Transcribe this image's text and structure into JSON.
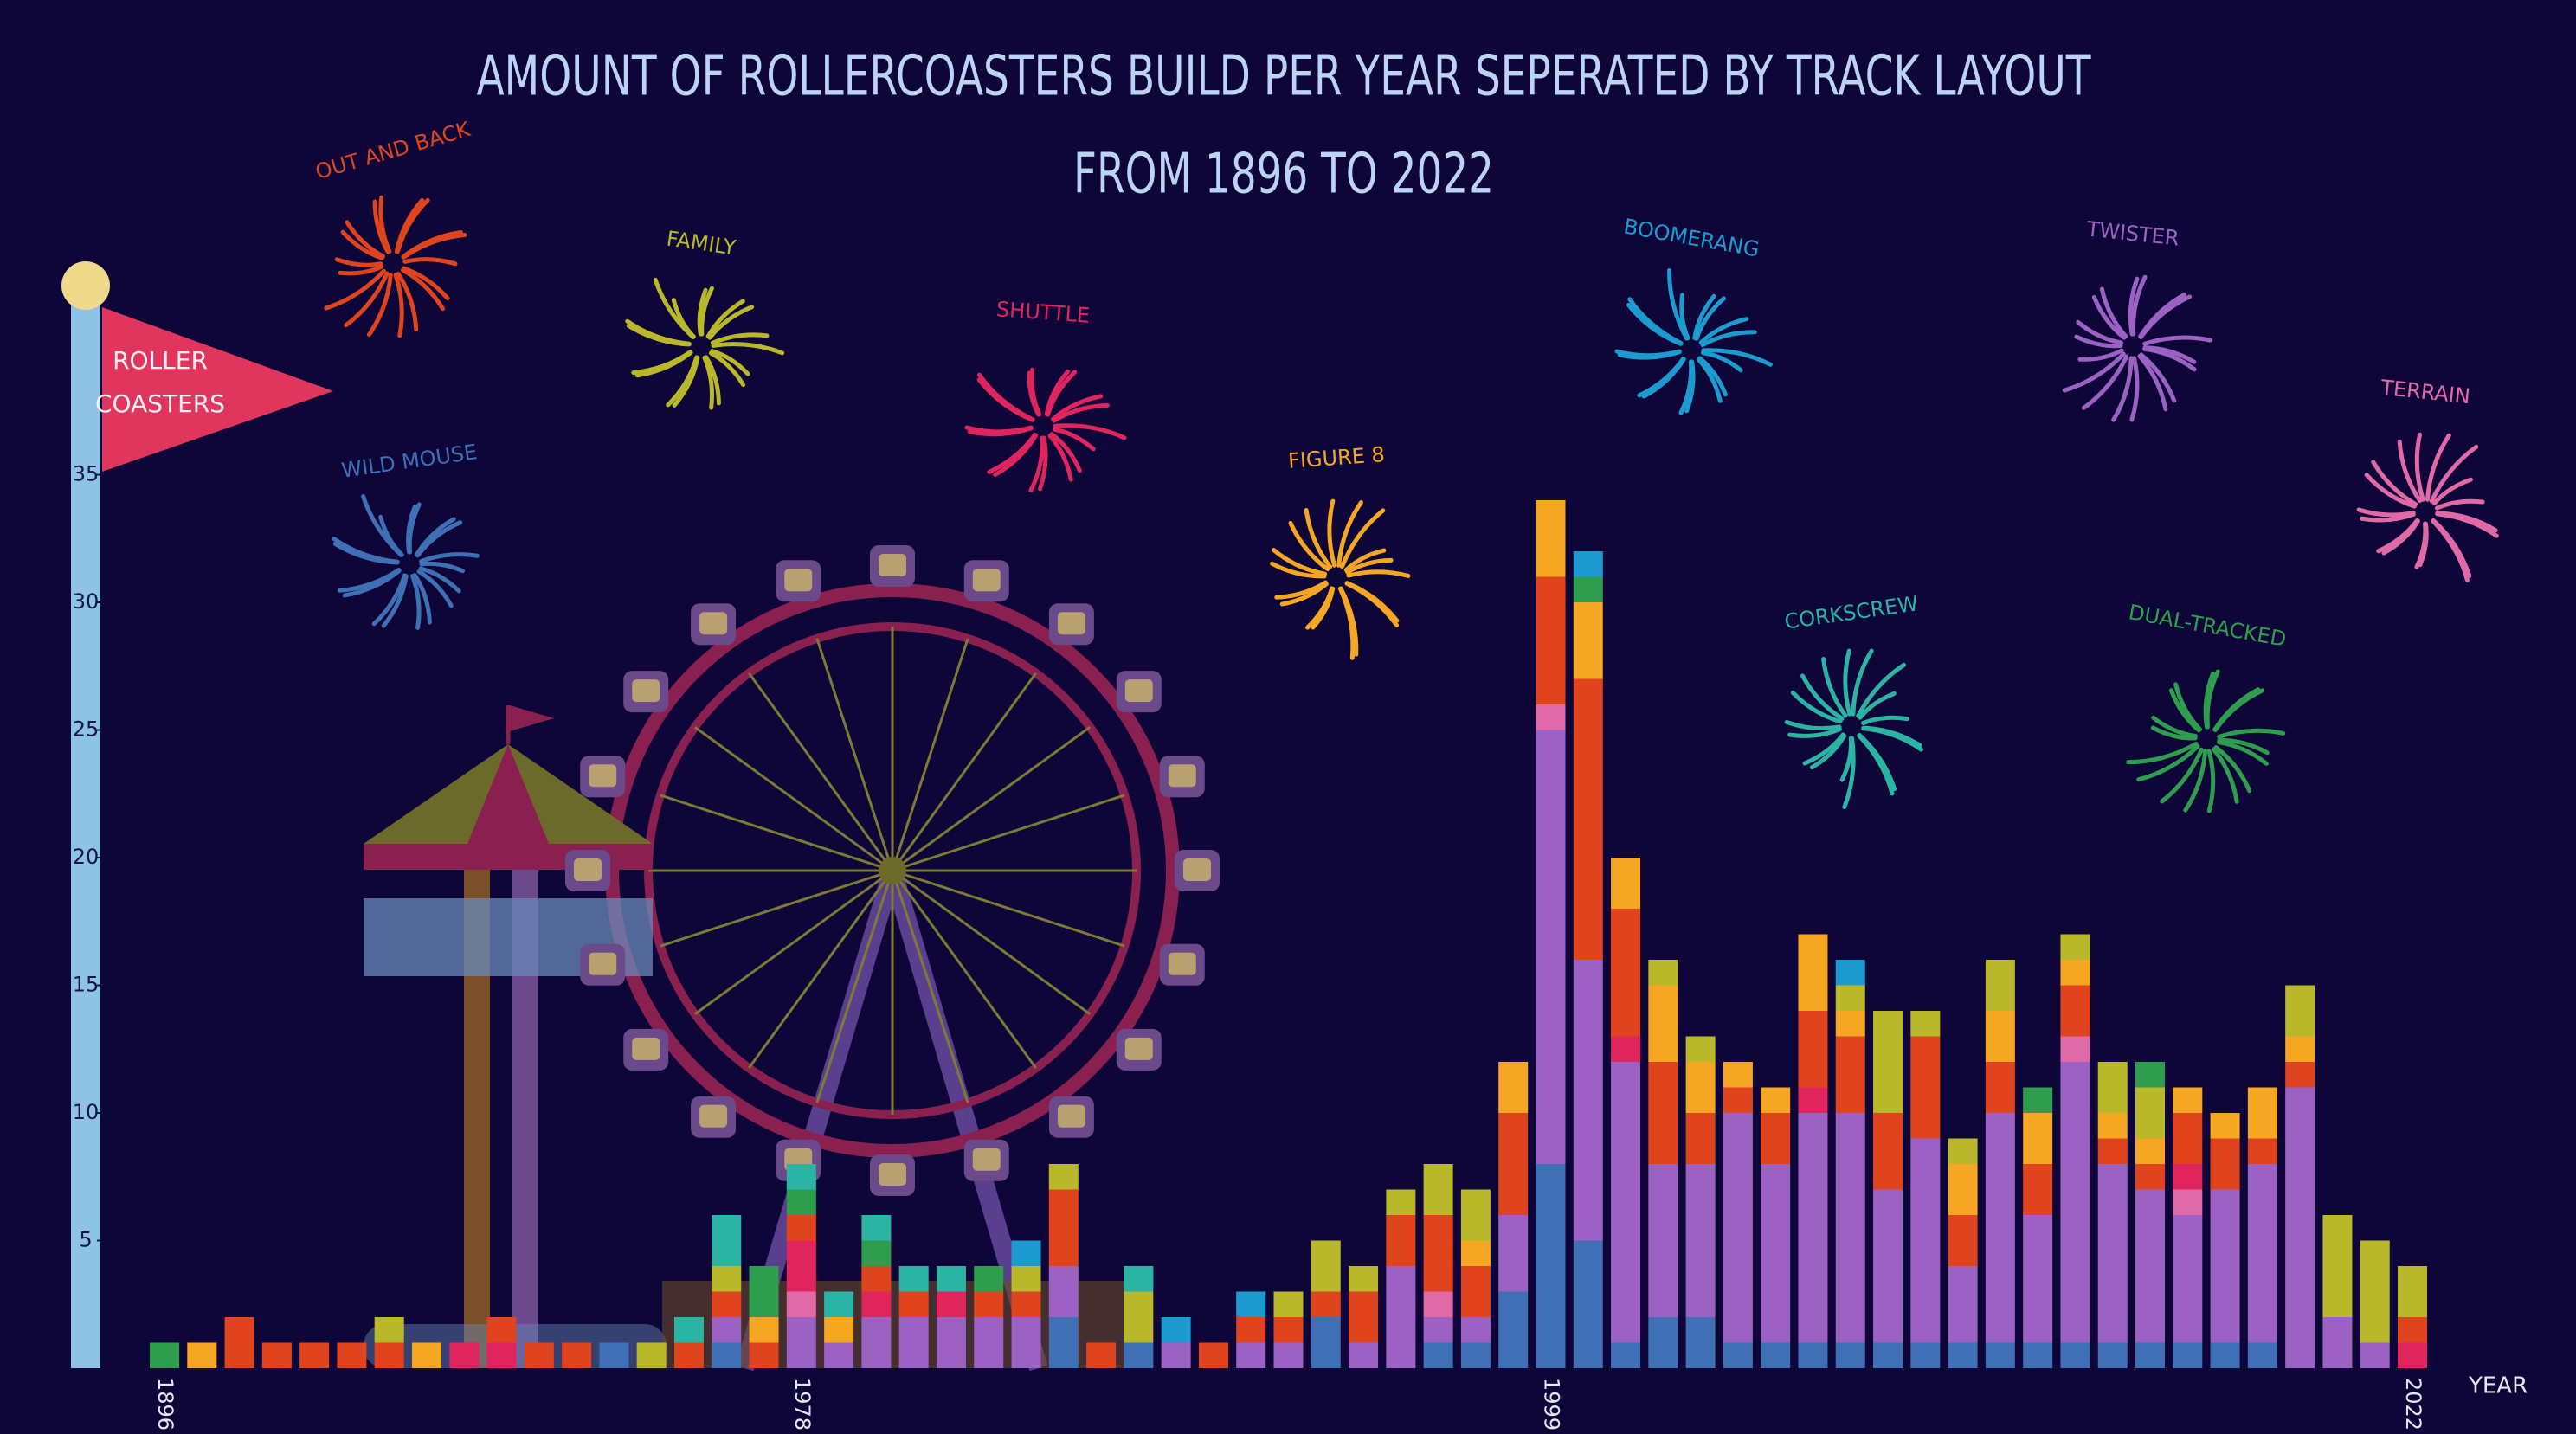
{
  "chart_data": {
    "type": "bar",
    "stacked": true,
    "title": "AMOUNT OF ROLLERCOASTERS BUILD PER YEAR SEPERATED BY TRACK LAYOUT",
    "subtitle": "FROM 1896 TO 2022",
    "y_label_lines": [
      "ROLLER",
      "COASTERS"
    ],
    "x_label": "YEAR",
    "ylim": [
      0,
      40
    ],
    "yticks": [
      5,
      10,
      15,
      20,
      25,
      30,
      35
    ],
    "grid": false,
    "categories": [
      "1896",
      null,
      null,
      null,
      null,
      null,
      null,
      null,
      null,
      null,
      null,
      null,
      null,
      null,
      null,
      null,
      null,
      "1978",
      null,
      null,
      null,
      null,
      null,
      null,
      null,
      null,
      null,
      null,
      null,
      null,
      null,
      null,
      null,
      null,
      null,
      null,
      null,
      "1999",
      null,
      null,
      null,
      null,
      null,
      null,
      null,
      null,
      null,
      null,
      null,
      null,
      null,
      null,
      null,
      null,
      null,
      null,
      null,
      null,
      null,
      null,
      "2022"
    ],
    "series": [
      {
        "name": "WILD MOUSE",
        "color": "#3f6fb5",
        "values": [
          0,
          0,
          0,
          0,
          0,
          0,
          0,
          0,
          0,
          0,
          0,
          0,
          1,
          0,
          0,
          1,
          0,
          0,
          0,
          0,
          0,
          0,
          0,
          0,
          2,
          0,
          1,
          0,
          0,
          0,
          0,
          2,
          0,
          0,
          1,
          1,
          3,
          8,
          5,
          1,
          2,
          2,
          1,
          1,
          1,
          1,
          1,
          1,
          1,
          1,
          1,
          1,
          1,
          1,
          1,
          1,
          1,
          0,
          0,
          0,
          0
        ]
      },
      {
        "name": "TWISTER",
        "color": "#9b62c4",
        "values": [
          0,
          0,
          0,
          0,
          0,
          0,
          0,
          0,
          0,
          0,
          0,
          0,
          0,
          0,
          0,
          1,
          0,
          2,
          1,
          2,
          2,
          2,
          2,
          2,
          2,
          0,
          0,
          1,
          0,
          1,
          1,
          0,
          1,
          4,
          1,
          1,
          3,
          17,
          11,
          11,
          6,
          6,
          9,
          7,
          9,
          9,
          6,
          8,
          3,
          9,
          5,
          11,
          7,
          6,
          5,
          6,
          7,
          11,
          2,
          1,
          0
        ]
      },
      {
        "name": "TERRAIN",
        "color": "#e06aa8",
        "values": [
          0,
          0,
          0,
          0,
          0,
          0,
          0,
          0,
          0,
          0,
          0,
          0,
          0,
          0,
          0,
          0,
          0,
          1,
          0,
          0,
          0,
          0,
          0,
          0,
          0,
          0,
          0,
          0,
          0,
          0,
          0,
          0,
          0,
          0,
          1,
          0,
          0,
          1,
          0,
          0,
          0,
          0,
          0,
          0,
          0,
          0,
          0,
          0,
          0,
          0,
          0,
          1,
          0,
          0,
          1,
          0,
          0,
          0,
          0,
          0,
          0
        ]
      },
      {
        "name": "SHUTTLE",
        "color": "#e0245e",
        "values": [
          0,
          0,
          0,
          0,
          0,
          0,
          0,
          0,
          1,
          1,
          0,
          0,
          0,
          0,
          0,
          0,
          0,
          2,
          0,
          1,
          0,
          1,
          0,
          0,
          0,
          0,
          0,
          0,
          0,
          0,
          0,
          0,
          0,
          0,
          0,
          0,
          0,
          0,
          0,
          1,
          0,
          0,
          0,
          0,
          1,
          0,
          0,
          0,
          0,
          0,
          0,
          0,
          0,
          0,
          1,
          0,
          0,
          0,
          0,
          0,
          1
        ]
      },
      {
        "name": "OUT AND BACK",
        "color": "#e0441e",
        "values": [
          0,
          0,
          2,
          1,
          1,
          1,
          1,
          0,
          0,
          1,
          1,
          1,
          0,
          0,
          1,
          1,
          1,
          1,
          0,
          1,
          1,
          0,
          1,
          1,
          3,
          1,
          0,
          0,
          1,
          1,
          1,
          1,
          2,
          2,
          3,
          2,
          4,
          5,
          11,
          5,
          4,
          2,
          1,
          2,
          3,
          3,
          3,
          4,
          2,
          2,
          2,
          2,
          1,
          1,
          2,
          2,
          1,
          1,
          0,
          0,
          1
        ]
      },
      {
        "name": "FIGURE 8",
        "color": "#f5a623",
        "values": [
          0,
          1,
          0,
          0,
          0,
          0,
          0,
          1,
          0,
          0,
          0,
          0,
          0,
          0,
          0,
          0,
          1,
          0,
          1,
          0,
          0,
          0,
          0,
          0,
          0,
          0,
          0,
          0,
          0,
          0,
          0,
          0,
          0,
          0,
          0,
          1,
          2,
          3,
          3,
          2,
          3,
          2,
          1,
          1,
          3,
          1,
          0,
          0,
          2,
          2,
          2,
          1,
          1,
          1,
          1,
          1,
          2,
          1,
          0,
          0,
          0
        ]
      },
      {
        "name": "FAMILY",
        "color": "#b8b82a",
        "values": [
          0,
          0,
          0,
          0,
          0,
          0,
          1,
          0,
          0,
          0,
          0,
          0,
          0,
          1,
          0,
          1,
          0,
          0,
          0,
          0,
          0,
          0,
          0,
          1,
          1,
          0,
          2,
          0,
          0,
          0,
          1,
          2,
          1,
          1,
          2,
          2,
          0,
          0,
          0,
          0,
          1,
          1,
          0,
          0,
          0,
          1,
          4,
          1,
          1,
          2,
          0,
          1,
          2,
          2,
          0,
          0,
          0,
          2,
          4,
          4,
          2
        ]
      },
      {
        "name": "DUAL-TRACKED",
        "color": "#2e9e4e",
        "values": [
          1,
          0,
          0,
          0,
          0,
          0,
          0,
          0,
          0,
          0,
          0,
          0,
          0,
          0,
          0,
          0,
          2,
          1,
          0,
          1,
          0,
          0,
          1,
          0,
          0,
          0,
          0,
          0,
          0,
          0,
          0,
          0,
          0,
          0,
          0,
          0,
          0,
          0,
          1,
          0,
          0,
          0,
          0,
          0,
          0,
          0,
          0,
          0,
          0,
          0,
          1,
          0,
          0,
          1,
          0,
          0,
          0,
          0,
          0,
          0,
          0
        ]
      },
      {
        "name": "CORKSCREW",
        "color": "#2bb3a3",
        "values": [
          0,
          0,
          0,
          0,
          0,
          0,
          0,
          0,
          0,
          0,
          0,
          0,
          0,
          0,
          1,
          2,
          0,
          1,
          1,
          1,
          1,
          1,
          0,
          0,
          0,
          0,
          1,
          0,
          0,
          0,
          0,
          0,
          0,
          0,
          0,
          0,
          0,
          0,
          0,
          0,
          0,
          0,
          0,
          0,
          0,
          0,
          0,
          0,
          0,
          0,
          0,
          0,
          0,
          0,
          0,
          0,
          0,
          0,
          0,
          0,
          0
        ]
      },
      {
        "name": "BOOMERANG",
        "color": "#1d9bd1",
        "values": [
          0,
          0,
          0,
          0,
          0,
          0,
          0,
          0,
          0,
          0,
          0,
          0,
          0,
          0,
          0,
          0,
          0,
          0,
          0,
          0,
          0,
          0,
          0,
          1,
          0,
          0,
          0,
          1,
          0,
          1,
          0,
          0,
          0,
          0,
          0,
          0,
          0,
          0,
          1,
          0,
          0,
          0,
          0,
          0,
          0,
          1,
          0,
          0,
          0,
          0,
          0,
          0,
          0,
          0,
          0,
          0,
          0,
          0,
          0,
          0,
          0
        ]
      }
    ]
  }
}
